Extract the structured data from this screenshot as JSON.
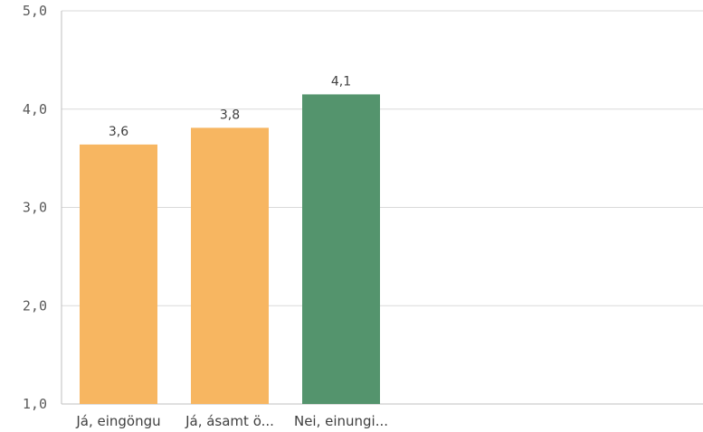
{
  "chart_data": {
    "type": "bar",
    "categories": [
      "Já, eingöngu",
      "Já, ásamt ö...",
      "Nei, einungi..."
    ],
    "values": [
      3.64,
      3.81,
      4.15
    ],
    "data_labels": [
      "3,6",
      "3,8",
      "4,1"
    ],
    "bar_colors": [
      "#f7b661",
      "#f7b661",
      "#54946d"
    ],
    "ylim": [
      1,
      5
    ],
    "y_ticks": [
      "1,0",
      "2,0",
      "3,0",
      "4,0",
      "5,0"
    ],
    "title": "",
    "xlabel": "",
    "ylabel": "",
    "grid": true
  }
}
